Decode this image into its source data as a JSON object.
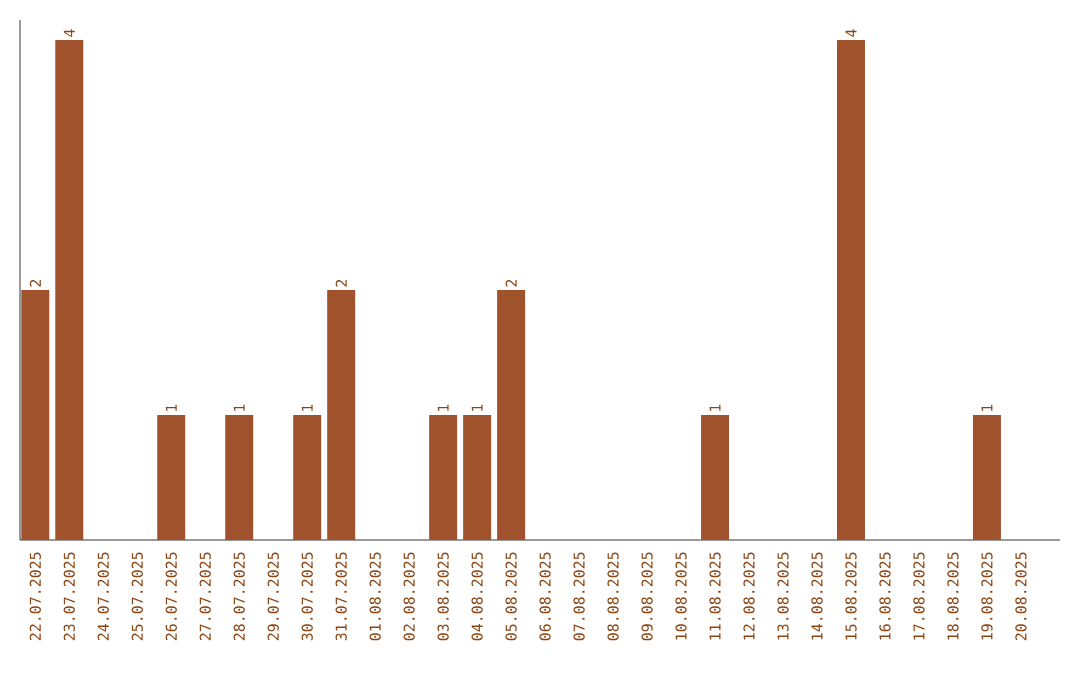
{
  "chart_data": {
    "type": "bar",
    "categories": [
      "22.07.2025",
      "23.07.2025",
      "24.07.2025",
      "25.07.2025",
      "26.07.2025",
      "27.07.2025",
      "28.07.2025",
      "29.07.2025",
      "30.07.2025",
      "31.07.2025",
      "01.08.2025",
      "02.08.2025",
      "03.08.2025",
      "04.08.2025",
      "05.08.2025",
      "06.08.2025",
      "07.08.2025",
      "08.08.2025",
      "09.08.2025",
      "10.08.2025",
      "11.08.2025",
      "12.08.2025",
      "13.08.2025",
      "14.08.2025",
      "15.08.2025",
      "16.08.2025",
      "17.08.2025",
      "18.08.2025",
      "19.08.2025",
      "20.08.2025"
    ],
    "values": [
      2,
      4,
      0,
      0,
      1,
      0,
      1,
      0,
      1,
      2,
      0,
      0,
      1,
      1,
      2,
      0,
      0,
      0,
      0,
      0,
      1,
      0,
      0,
      0,
      4,
      0,
      0,
      0,
      1,
      0
    ],
    "value_labels": [
      "2",
      "4",
      null,
      null,
      "1",
      null,
      "1",
      null,
      "1",
      "2",
      null,
      null,
      "1",
      "1",
      "2",
      null,
      null,
      null,
      null,
      null,
      "1",
      null,
      null,
      null,
      "4",
      null,
      null,
      null,
      "1",
      null
    ],
    "color": "#a0522d",
    "tick_labels": "x"
  }
}
